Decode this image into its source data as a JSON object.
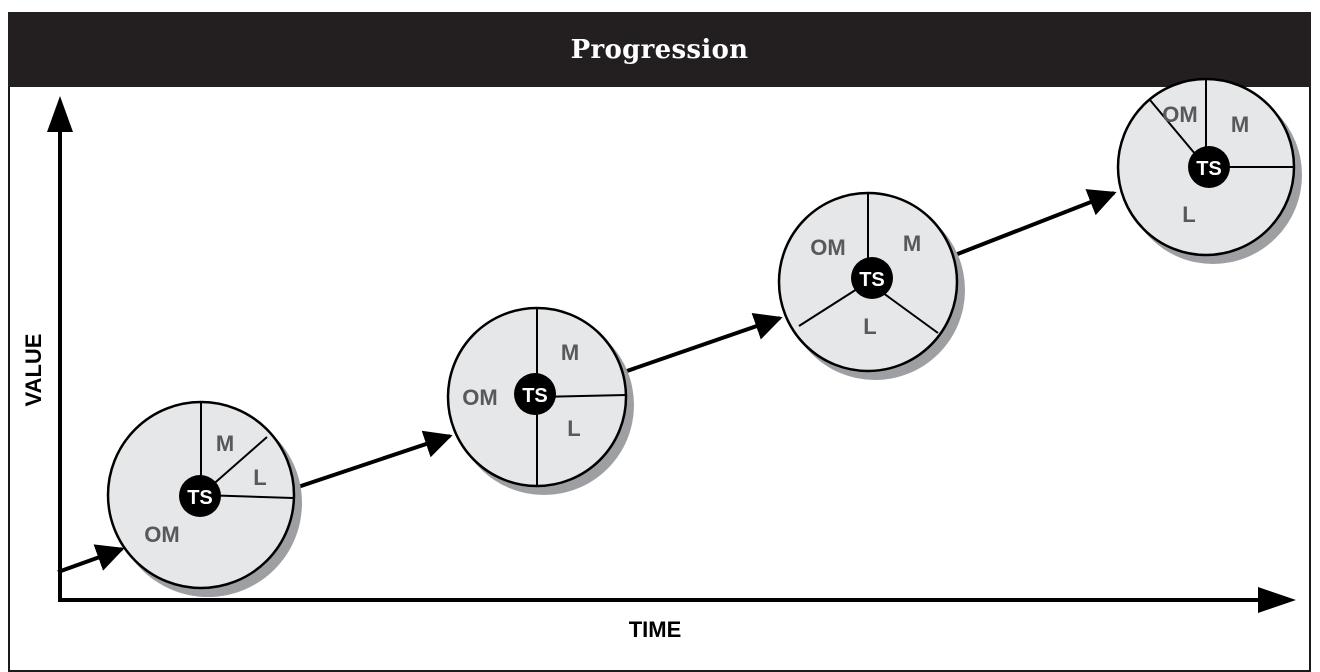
{
  "title": "Progression",
  "axes": {
    "x_label": "TIME",
    "y_label": "VALUE"
  },
  "center_label": "TS",
  "circles": [
    {
      "labels": {
        "OM": "OM",
        "M": "M",
        "L": "L"
      }
    },
    {
      "labels": {
        "OM": "OM",
        "M": "M",
        "L": "L"
      }
    },
    {
      "labels": {
        "OM": "OM",
        "M": "M",
        "L": "L"
      }
    },
    {
      "labels": {
        "OM": "OM",
        "M": "M",
        "L": "L"
      }
    }
  ],
  "colors": {
    "title_bg": "#231f20",
    "circle_fill": "#e6e7e8",
    "shadow": "#9d9fa2",
    "label": "#58595b",
    "ink": "#000000"
  }
}
